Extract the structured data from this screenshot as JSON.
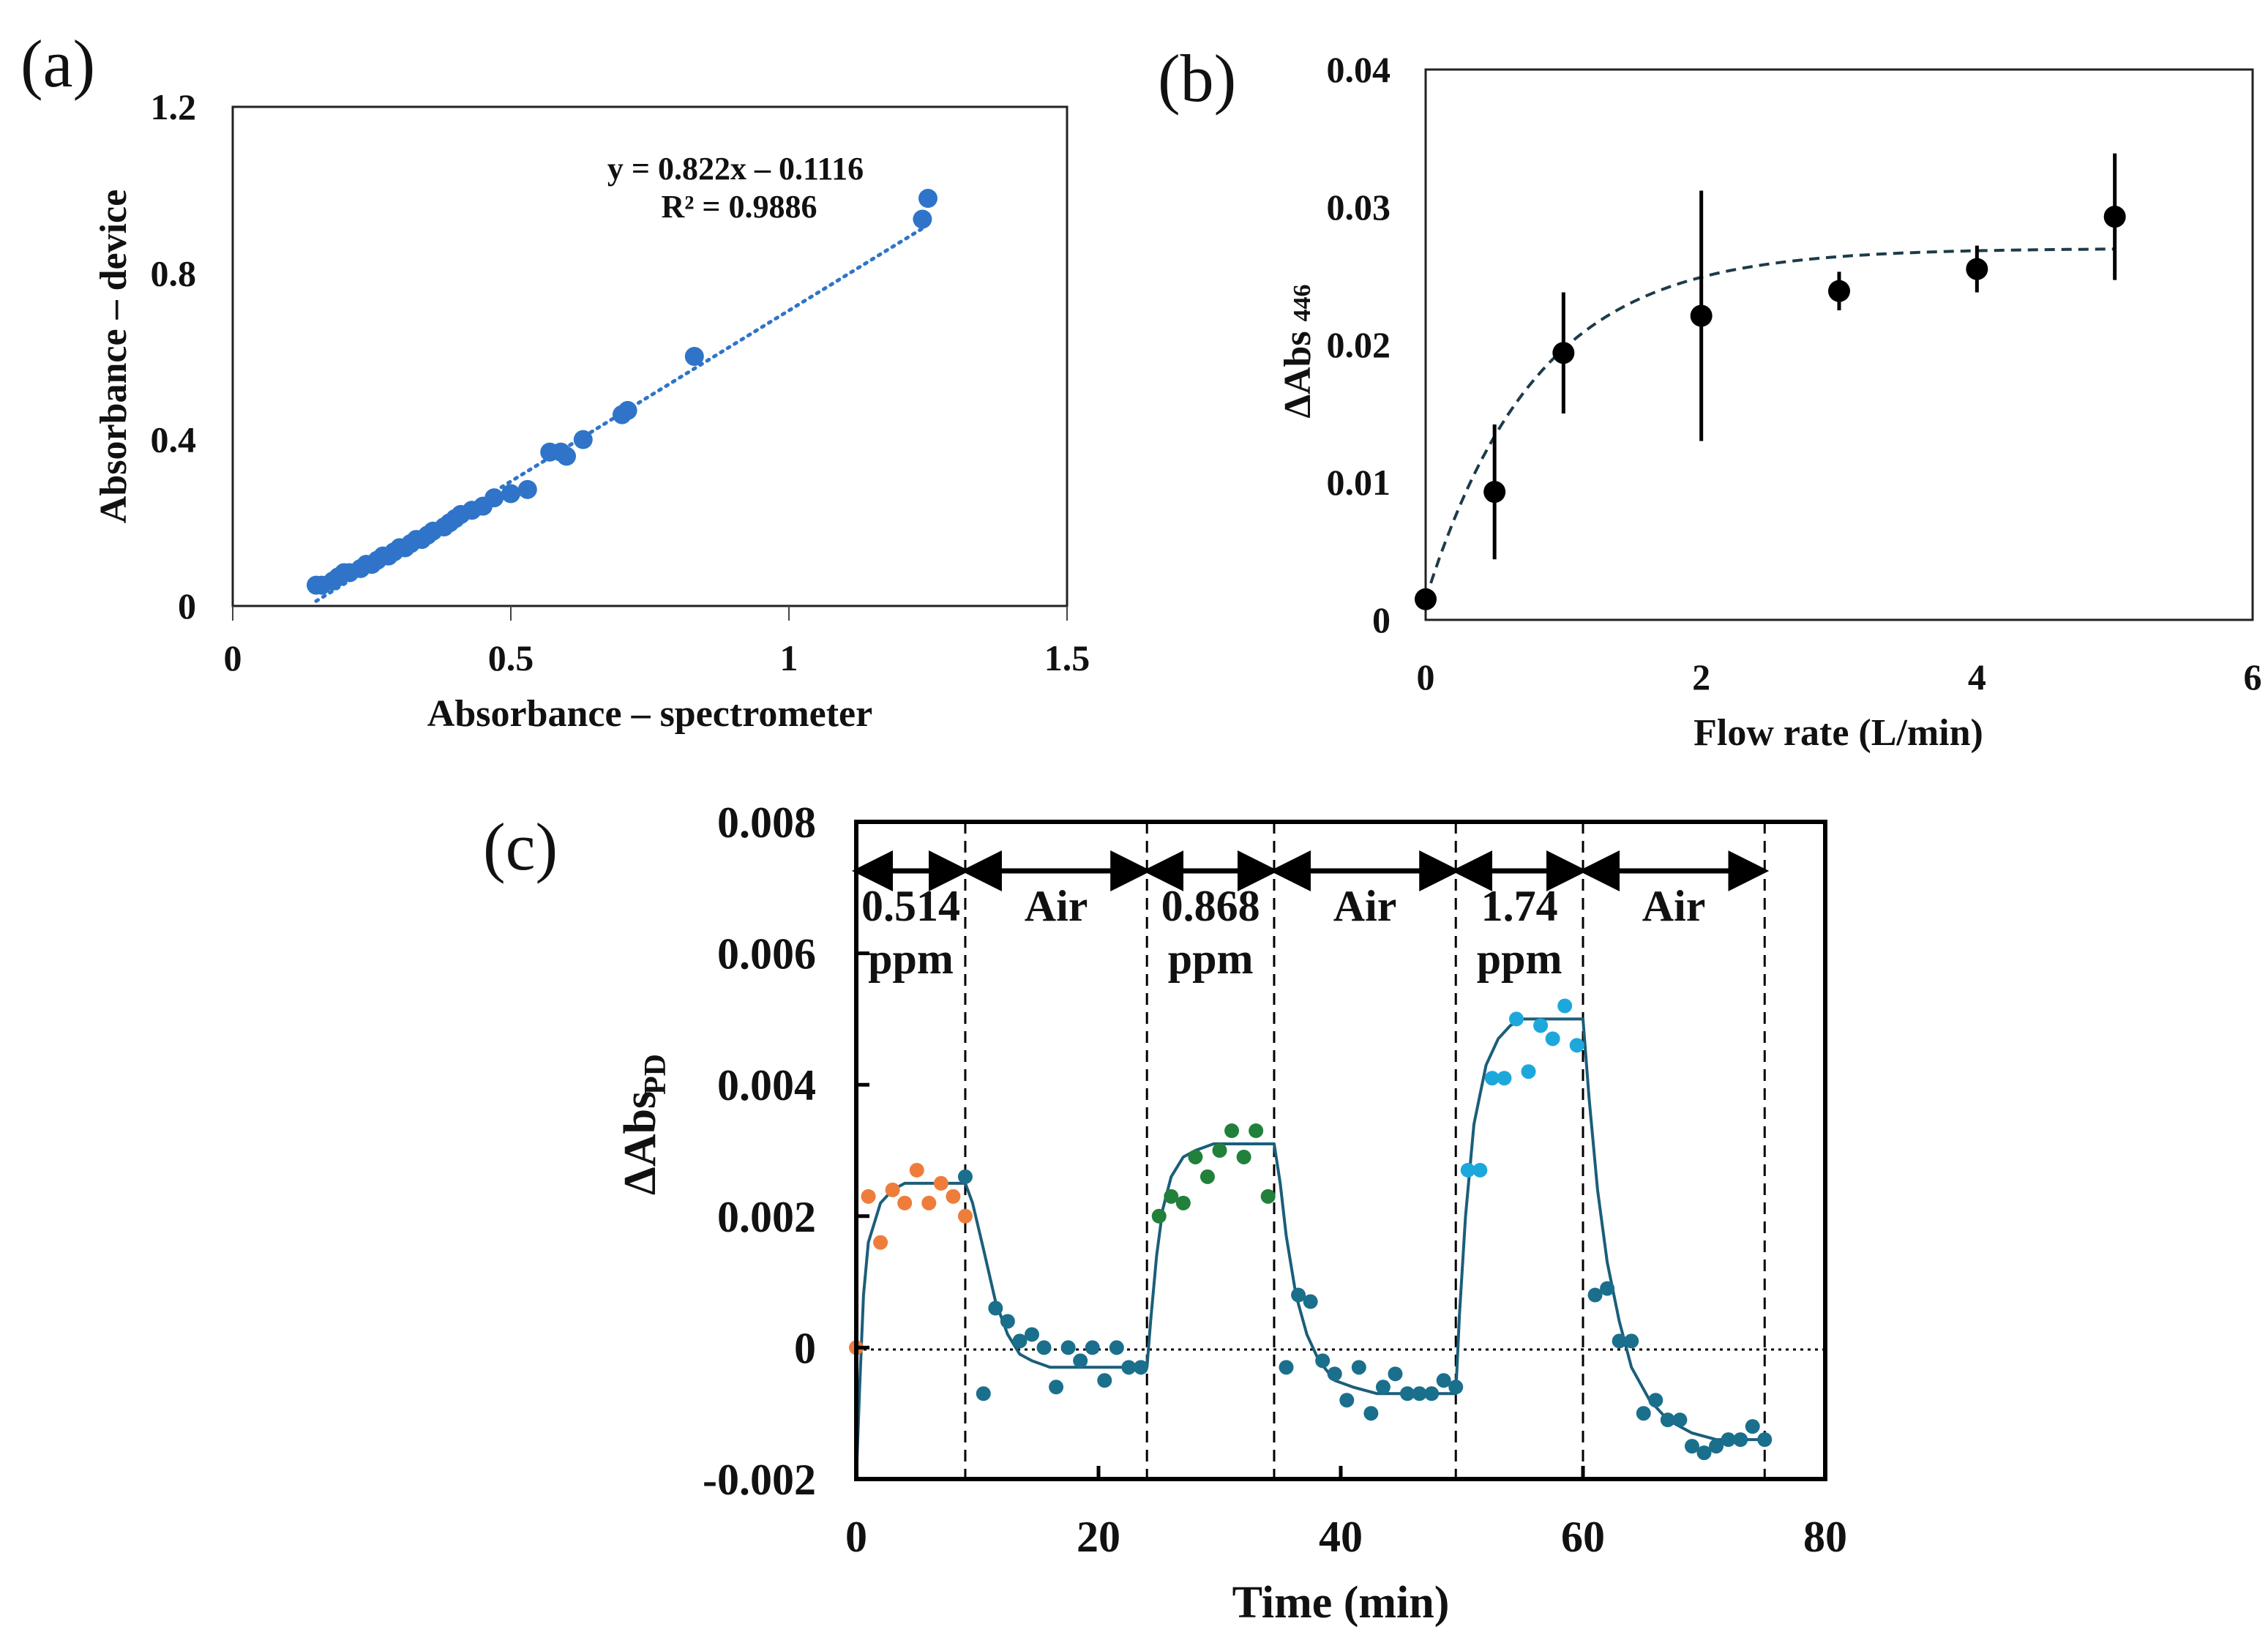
{
  "colors": {
    "blue": "#2f74c9",
    "black": "#000000",
    "orange": "#ee7d3b",
    "teal": "#1a6f8c",
    "green": "#21803a",
    "cyan": "#1da8dc",
    "curve": "#1b5e7a"
  },
  "chart_data": [
    {
      "panel": "(a)",
      "type": "scatter",
      "xlabel": "Absorbance – spectrometer",
      "ylabel": "Absorbance – device",
      "xlim": [
        0,
        1.5
      ],
      "ylim": [
        0,
        1.2
      ],
      "xticks": [
        "0",
        "0.5",
        "1",
        "1.5"
      ],
      "yticks": [
        "0",
        "0.4",
        "0.8",
        "1.2"
      ],
      "equation": "y = 0.822x – 0.1116",
      "r_squared": "R² = 0.9886",
      "fit": {
        "slope": 0.822,
        "intercept": -0.1116,
        "x_range": [
          0.15,
          1.24
        ]
      },
      "x": [
        0.15,
        0.16,
        0.18,
        0.19,
        0.2,
        0.21,
        0.23,
        0.24,
        0.25,
        0.26,
        0.27,
        0.28,
        0.29,
        0.3,
        0.31,
        0.32,
        0.33,
        0.34,
        0.35,
        0.36,
        0.38,
        0.39,
        0.4,
        0.41,
        0.43,
        0.45,
        0.47,
        0.5,
        0.53,
        0.57,
        0.59,
        0.6,
        0.63,
        0.7,
        0.71,
        0.83,
        1.24,
        1.25
      ],
      "y": [
        0.05,
        0.05,
        0.06,
        0.07,
        0.08,
        0.08,
        0.09,
        0.1,
        0.1,
        0.11,
        0.12,
        0.12,
        0.13,
        0.14,
        0.14,
        0.15,
        0.16,
        0.16,
        0.17,
        0.18,
        0.19,
        0.2,
        0.21,
        0.22,
        0.23,
        0.24,
        0.26,
        0.27,
        0.28,
        0.37,
        0.37,
        0.36,
        0.4,
        0.46,
        0.47,
        0.6,
        0.93,
        0.98
      ]
    },
    {
      "panel": "(b)",
      "type": "scatter",
      "xlabel": "Flow rate (L/min)",
      "ylabel": "ΔAbs",
      "ylabel_sub": "446",
      "xlim": [
        0,
        6
      ],
      "ylim": [
        0,
        0.04
      ],
      "xticks": [
        "0",
        "2",
        "4",
        "6"
      ],
      "yticks": [
        "0",
        "0.01",
        "0.02",
        "0.03",
        "0.04"
      ],
      "x": [
        0,
        0.5,
        1,
        2,
        3,
        4,
        5
      ],
      "y": [
        0.0015,
        0.0093,
        0.0194,
        0.0221,
        0.0239,
        0.0255,
        0.0293
      ],
      "err": [
        0,
        0.0049,
        0.0044,
        0.0091,
        0.0014,
        0.0017,
        0.0046
      ],
      "fit": {
        "type": "saturation",
        "ymax": 0.027,
        "y0": 0.0015,
        "k": 1.25,
        "x_range": [
          0,
          5
        ]
      }
    },
    {
      "panel": "(c)",
      "type": "scatter",
      "xlabel": "Time (min)",
      "ylabel": "ΔAbs",
      "ylabel_sub": "PD",
      "xlim": [
        0,
        80
      ],
      "ylim": [
        -0.002,
        0.008
      ],
      "xticks": [
        "0",
        "20",
        "40",
        "60",
        "80"
      ],
      "yticks": [
        "-0.002",
        "0",
        "0.002",
        "0.004",
        "0.006",
        "0.008"
      ],
      "segment_bounds": [
        0,
        9,
        24,
        34.5,
        49.5,
        60,
        75
      ],
      "segments": [
        {
          "line1": "0.514",
          "line2": "ppm"
        },
        {
          "line1": "Air",
          "line2": ""
        },
        {
          "line1": "0.868",
          "line2": "ppm"
        },
        {
          "line1": "Air",
          "line2": ""
        },
        {
          "line1": "1.74",
          "line2": "ppm"
        },
        {
          "line1": "Air",
          "line2": ""
        }
      ],
      "series": [
        {
          "name": "0.514 ppm",
          "color": "orange",
          "x": [
            0,
            1,
            2,
            3,
            4,
            5,
            6,
            7,
            8,
            9
          ],
          "y": [
            0,
            0.0023,
            0.0016,
            0.0024,
            0.0022,
            0.0027,
            0.0022,
            0.0025,
            0.0023,
            0.002
          ]
        },
        {
          "name": "Air 1",
          "color": "teal",
          "x": [
            9,
            10.5,
            11.5,
            12.5,
            13.5,
            14.5,
            15.5,
            16.5,
            17.5,
            18.5,
            19.5,
            20.5,
            21.5,
            22.5,
            23.5
          ],
          "y": [
            0.0026,
            -0.0007,
            0.0006,
            0.0004,
            0.0001,
            0.0002,
            0.0,
            -0.0006,
            0.0,
            -0.0002,
            0.0,
            -0.0005,
            0.0,
            -0.0003,
            -0.0003
          ]
        },
        {
          "name": "0.868 ppm",
          "color": "green",
          "x": [
            25,
            26,
            27,
            28,
            29,
            30,
            31,
            32,
            33,
            34
          ],
          "y": [
            0.002,
            0.0023,
            0.0022,
            0.0029,
            0.0026,
            0.003,
            0.0033,
            0.0029,
            0.0033,
            0.0023
          ]
        },
        {
          "name": "Air 2",
          "color": "teal",
          "x": [
            35.5,
            36.5,
            37.5,
            38.5,
            39.5,
            40.5,
            41.5,
            42.5,
            43.5,
            44.5,
            45.5,
            46.5,
            47.5,
            48.5,
            49.5
          ],
          "y": [
            -0.0003,
            0.0008,
            0.0007,
            -0.0002,
            -0.0004,
            -0.0008,
            -0.0003,
            -0.001,
            -0.0006,
            -0.0004,
            -0.0007,
            -0.0007,
            -0.0007,
            -0.0005,
            -0.0006
          ]
        },
        {
          "name": "1.74 ppm",
          "color": "cyan",
          "x": [
            50.5,
            51.5,
            52.5,
            53.5,
            54.5,
            55.5,
            56.5,
            57.5,
            58.5,
            59.5
          ],
          "y": [
            0.0027,
            0.0027,
            0.0041,
            0.0041,
            0.005,
            0.0042,
            0.0049,
            0.0047,
            0.0052,
            0.0046
          ]
        },
        {
          "name": "Air 3",
          "color": "teal",
          "x": [
            61,
            62,
            63,
            64,
            65,
            66,
            67,
            68,
            69,
            70,
            71,
            72,
            73,
            74,
            75
          ],
          "y": [
            0.0008,
            0.0009,
            0.0001,
            0.0001,
            -0.001,
            -0.0008,
            -0.0011,
            -0.0011,
            -0.0015,
            -0.0016,
            -0.0015,
            -0.0014,
            -0.0014,
            -0.0012,
            -0.0014
          ]
        }
      ],
      "fit_curve": {
        "x": [
          0,
          0.3,
          0.6,
          1,
          1.5,
          2,
          3,
          4,
          6,
          9,
          9.6,
          10.5,
          11.5,
          12.5,
          13.5,
          14.5,
          16,
          18,
          20,
          22,
          24,
          24.3,
          24.8,
          25.3,
          26,
          27,
          28,
          29.5,
          31,
          33,
          34.5,
          35,
          35.5,
          36.3,
          37.2,
          38.2,
          39.5,
          41,
          43,
          45,
          47,
          49.5,
          49.8,
          50.3,
          51,
          52,
          53,
          54,
          55,
          57,
          60,
          60.5,
          61.2,
          62,
          63,
          64,
          65.5,
          67,
          69,
          71,
          73,
          75
        ],
        "y": [
          -0.002,
          -0.0005,
          0.0008,
          0.0016,
          0.0019,
          0.0022,
          0.0024,
          0.0025,
          0.0025,
          0.0025,
          0.0022,
          0.0015,
          0.0007,
          0.0002,
          -0.0001,
          -0.0002,
          -0.0003,
          -0.0003,
          -0.0003,
          -0.0003,
          -0.0003,
          0.0004,
          0.0014,
          0.0021,
          0.0026,
          0.0029,
          0.003,
          0.0031,
          0.0031,
          0.0031,
          0.0031,
          0.0025,
          0.0017,
          0.0008,
          0.0002,
          -0.0002,
          -0.0005,
          -0.0006,
          -0.0007,
          -0.0007,
          -0.0007,
          -0.0007,
          0.0005,
          0.002,
          0.0034,
          0.0043,
          0.0047,
          0.0049,
          0.005,
          0.005,
          0.005,
          0.0038,
          0.0024,
          0.0013,
          0.0004,
          -0.0003,
          -0.0008,
          -0.0011,
          -0.0013,
          -0.0014,
          -0.0014,
          -0.0014
        ]
      }
    }
  ]
}
